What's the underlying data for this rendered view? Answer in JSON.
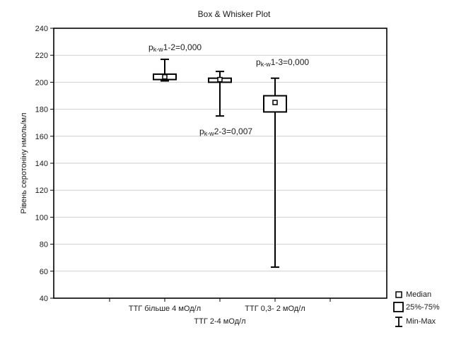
{
  "chart_data": {
    "type": "box",
    "title": "Box & Whisker Plot",
    "ylabel": "Рівень серотоніну  нмоль/мл",
    "xlabel": "",
    "ylim": [
      40,
      240
    ],
    "yticks": [
      40,
      60,
      80,
      100,
      120,
      140,
      160,
      180,
      200,
      220,
      240
    ],
    "grid": true,
    "categories": [
      "ТТГ більше 4 мОд/л",
      "ТТГ 2-4 мОд/л",
      "ТТГ 0,3- 2 мОд/л"
    ],
    "boxes": [
      {
        "category": "ТТГ більше 4 мОд/л",
        "min": 201,
        "q1": 202,
        "median": 204,
        "q3": 206,
        "max": 217
      },
      {
        "category": "ТТГ 2-4 мОд/л",
        "min": 175,
        "q1": 200,
        "median": 202,
        "q3": 203,
        "max": 208
      },
      {
        "category": "ТТГ 0,3- 2 мОд/л",
        "min": 63,
        "q1": 178,
        "median": 185,
        "q3": 190,
        "max": 203
      }
    ],
    "annotations": [
      {
        "prefix": "p",
        "sub": "k-w",
        "rest": "1-2=0,000"
      },
      {
        "prefix": "p",
        "sub": "k-w",
        "rest": "2-3=0,007"
      },
      {
        "prefix": "p",
        "sub": "k-w",
        "rest": "1-3=0,000"
      }
    ],
    "legend": {
      "position": "bottom-right",
      "items": [
        {
          "symbol": "median",
          "label": "Median"
        },
        {
          "symbol": "box",
          "label": "25%-75%"
        },
        {
          "symbol": "whisker",
          "label": "Min-Max"
        }
      ]
    }
  }
}
